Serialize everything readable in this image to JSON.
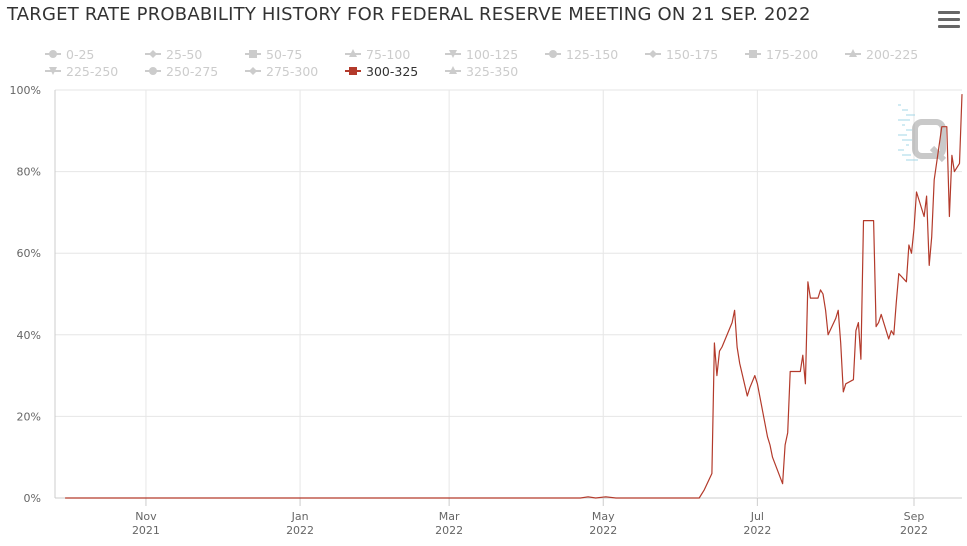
{
  "header": {
    "title": "TARGET RATE PROBABILITY HISTORY FOR FEDERAL RESERVE MEETING ON 21 SEP. 2022",
    "menu_icon": "hamburger-menu-icon"
  },
  "colors": {
    "active_series": "#b33a2b",
    "legend_inactive": "#cccccc",
    "legend_active": "#333333",
    "grid": "#e6e6e6",
    "axis_text": "#666666"
  },
  "chart_data": {
    "type": "line",
    "title": "TARGET RATE PROBABILITY HISTORY FOR FEDERAL RESERVE MEETING ON 21 SEP. 2022",
    "xlabel": "",
    "ylabel": "",
    "ylim": [
      0,
      100
    ],
    "y_ticks": [
      "0%",
      "20%",
      "40%",
      "60%",
      "80%",
      "100%"
    ],
    "x_ticks": [
      {
        "month": "Nov",
        "year": "2021",
        "date": "2021-11-01"
      },
      {
        "month": "Jan",
        "year": "2022",
        "date": "2022-01-01"
      },
      {
        "month": "Mar",
        "year": "2022",
        "date": "2022-03-01"
      },
      {
        "month": "May",
        "year": "2022",
        "date": "2022-05-01"
      },
      {
        "month": "Jul",
        "year": "2022",
        "date": "2022-07-01"
      },
      {
        "month": "Sep",
        "year": "2022",
        "date": "2022-09-01"
      }
    ],
    "xlim": [
      "2021-09-26",
      "2022-09-20"
    ],
    "grid": true,
    "legend_position": "top",
    "legend": [
      {
        "name": "0-25",
        "marker": "circle",
        "active": false
      },
      {
        "name": "25-50",
        "marker": "diamond",
        "active": false
      },
      {
        "name": "50-75",
        "marker": "square",
        "active": false
      },
      {
        "name": "75-100",
        "marker": "triangle",
        "active": false
      },
      {
        "name": "100-125",
        "marker": "triangle-down",
        "active": false
      },
      {
        "name": "125-150",
        "marker": "circle",
        "active": false
      },
      {
        "name": "150-175",
        "marker": "diamond",
        "active": false
      },
      {
        "name": "175-200",
        "marker": "square",
        "active": false
      },
      {
        "name": "200-225",
        "marker": "triangle",
        "active": false
      },
      {
        "name": "225-250",
        "marker": "triangle-down",
        "active": false
      },
      {
        "name": "250-275",
        "marker": "circle",
        "active": false
      },
      {
        "name": "275-300",
        "marker": "diamond",
        "active": false
      },
      {
        "name": "300-325",
        "marker": "square",
        "active": true
      },
      {
        "name": "325-350",
        "marker": "triangle",
        "active": false
      }
    ],
    "series": [
      {
        "name": "300-325",
        "color": "#b33a2b",
        "points": [
          [
            "2021-09-30",
            0
          ],
          [
            "2022-04-22",
            0
          ],
          [
            "2022-04-25",
            0.3
          ],
          [
            "2022-04-28",
            0
          ],
          [
            "2022-05-02",
            0.3
          ],
          [
            "2022-05-06",
            0
          ],
          [
            "2022-06-08",
            0
          ],
          [
            "2022-06-10",
            2
          ],
          [
            "2022-06-13",
            6
          ],
          [
            "2022-06-14",
            38
          ],
          [
            "2022-06-15",
            30
          ],
          [
            "2022-06-16",
            36
          ],
          [
            "2022-06-17",
            37
          ],
          [
            "2022-06-21",
            43
          ],
          [
            "2022-06-22",
            46
          ],
          [
            "2022-06-23",
            37
          ],
          [
            "2022-06-24",
            33
          ],
          [
            "2022-06-27",
            25
          ],
          [
            "2022-06-28",
            27
          ],
          [
            "2022-06-30",
            30
          ],
          [
            "2022-07-01",
            28
          ],
          [
            "2022-07-05",
            15
          ],
          [
            "2022-07-06",
            13
          ],
          [
            "2022-07-07",
            10
          ],
          [
            "2022-07-11",
            3.5
          ],
          [
            "2022-07-12",
            13
          ],
          [
            "2022-07-13",
            16
          ],
          [
            "2022-07-14",
            31
          ],
          [
            "2022-07-15",
            31
          ],
          [
            "2022-07-18",
            31
          ],
          [
            "2022-07-19",
            35
          ],
          [
            "2022-07-20",
            28
          ],
          [
            "2022-07-21",
            53
          ],
          [
            "2022-07-22",
            49
          ],
          [
            "2022-07-25",
            49
          ],
          [
            "2022-07-26",
            51
          ],
          [
            "2022-07-27",
            50
          ],
          [
            "2022-07-28",
            46
          ],
          [
            "2022-07-29",
            40
          ],
          [
            "2022-08-01",
            44
          ],
          [
            "2022-08-02",
            46
          ],
          [
            "2022-08-03",
            38
          ],
          [
            "2022-08-04",
            26
          ],
          [
            "2022-08-05",
            28
          ],
          [
            "2022-08-08",
            29
          ],
          [
            "2022-08-09",
            41
          ],
          [
            "2022-08-10",
            43
          ],
          [
            "2022-08-11",
            34
          ],
          [
            "2022-08-12",
            68
          ],
          [
            "2022-08-15",
            68
          ],
          [
            "2022-08-16",
            68
          ],
          [
            "2022-08-17",
            42
          ],
          [
            "2022-08-18",
            43
          ],
          [
            "2022-08-19",
            45
          ],
          [
            "2022-08-22",
            39
          ],
          [
            "2022-08-23",
            41
          ],
          [
            "2022-08-24",
            40
          ],
          [
            "2022-08-25",
            48
          ],
          [
            "2022-08-26",
            55
          ],
          [
            "2022-08-29",
            53
          ],
          [
            "2022-08-30",
            62
          ],
          [
            "2022-08-31",
            60
          ],
          [
            "2022-09-01",
            66
          ],
          [
            "2022-09-02",
            75
          ],
          [
            "2022-09-05",
            69
          ],
          [
            "2022-09-06",
            74
          ],
          [
            "2022-09-07",
            57
          ],
          [
            "2022-09-08",
            64
          ],
          [
            "2022-09-09",
            78
          ],
          [
            "2022-09-12",
            91
          ],
          [
            "2022-09-13",
            91
          ],
          [
            "2022-09-14",
            91
          ],
          [
            "2022-09-15",
            69
          ],
          [
            "2022-09-16",
            84
          ],
          [
            "2022-09-17",
            80
          ],
          [
            "2022-09-19",
            82
          ],
          [
            "2022-09-20",
            99
          ]
        ]
      }
    ]
  }
}
